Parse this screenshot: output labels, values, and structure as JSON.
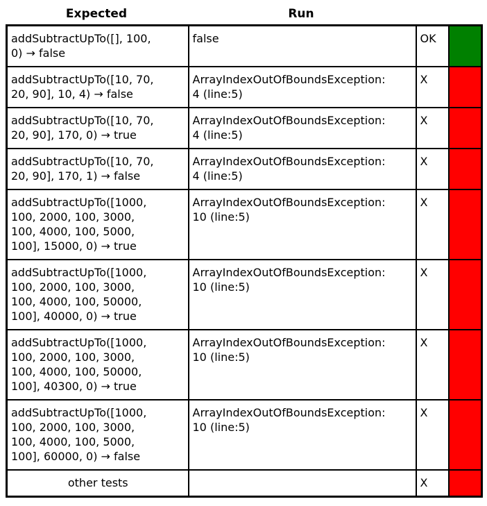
{
  "table": {
    "headers": {
      "expected": "Expected",
      "run": "Run"
    },
    "colors": {
      "pass": "#008000",
      "fail": "#ff0000",
      "border": "#000000",
      "text": "#000000"
    },
    "rows": [
      {
        "expected": "addSubtractUpTo([], 100,\n0) → false",
        "run": "false",
        "status": "OK",
        "result": "pass",
        "center": false
      },
      {
        "expected": "addSubtractUpTo([10, 70,\n20, 90], 10, 4) → false",
        "run": "ArrayIndexOutOfBoundsException:\n4 (line:5)",
        "status": "X",
        "result": "fail",
        "center": false
      },
      {
        "expected": "addSubtractUpTo([10, 70,\n20, 90], 170, 0) → true",
        "run": "ArrayIndexOutOfBoundsException:\n4 (line:5)",
        "status": "X",
        "result": "fail",
        "center": false
      },
      {
        "expected": "addSubtractUpTo([10, 70,\n20, 90], 170, 1) → false",
        "run": "ArrayIndexOutOfBoundsException:\n4 (line:5)",
        "status": "X",
        "result": "fail",
        "center": false
      },
      {
        "expected": "addSubtractUpTo([1000,\n100, 2000, 100, 3000,\n100, 4000, 100, 5000,\n100], 15000, 0) → true",
        "run": "ArrayIndexOutOfBoundsException:\n10 (line:5)",
        "status": "X",
        "result": "fail",
        "center": false
      },
      {
        "expected": "addSubtractUpTo([1000,\n100, 2000, 100, 3000,\n100, 4000, 100, 50000,\n100], 40000, 0) → true",
        "run": "ArrayIndexOutOfBoundsException:\n10 (line:5)",
        "status": "X",
        "result": "fail",
        "center": false
      },
      {
        "expected": "addSubtractUpTo([1000,\n100, 2000, 100, 3000,\n100, 4000, 100, 50000,\n100], 40300, 0) → true",
        "run": "ArrayIndexOutOfBoundsException:\n10 (line:5)",
        "status": "X",
        "result": "fail",
        "center": false
      },
      {
        "expected": "addSubtractUpTo([1000,\n100, 2000, 100, 3000,\n100, 4000, 100, 5000,\n100], 60000, 0) → false",
        "run": "ArrayIndexOutOfBoundsException:\n10 (line:5)",
        "status": "X",
        "result": "fail",
        "center": false
      },
      {
        "expected": "other tests",
        "run": "",
        "status": "X",
        "result": "fail",
        "center": true
      }
    ]
  }
}
